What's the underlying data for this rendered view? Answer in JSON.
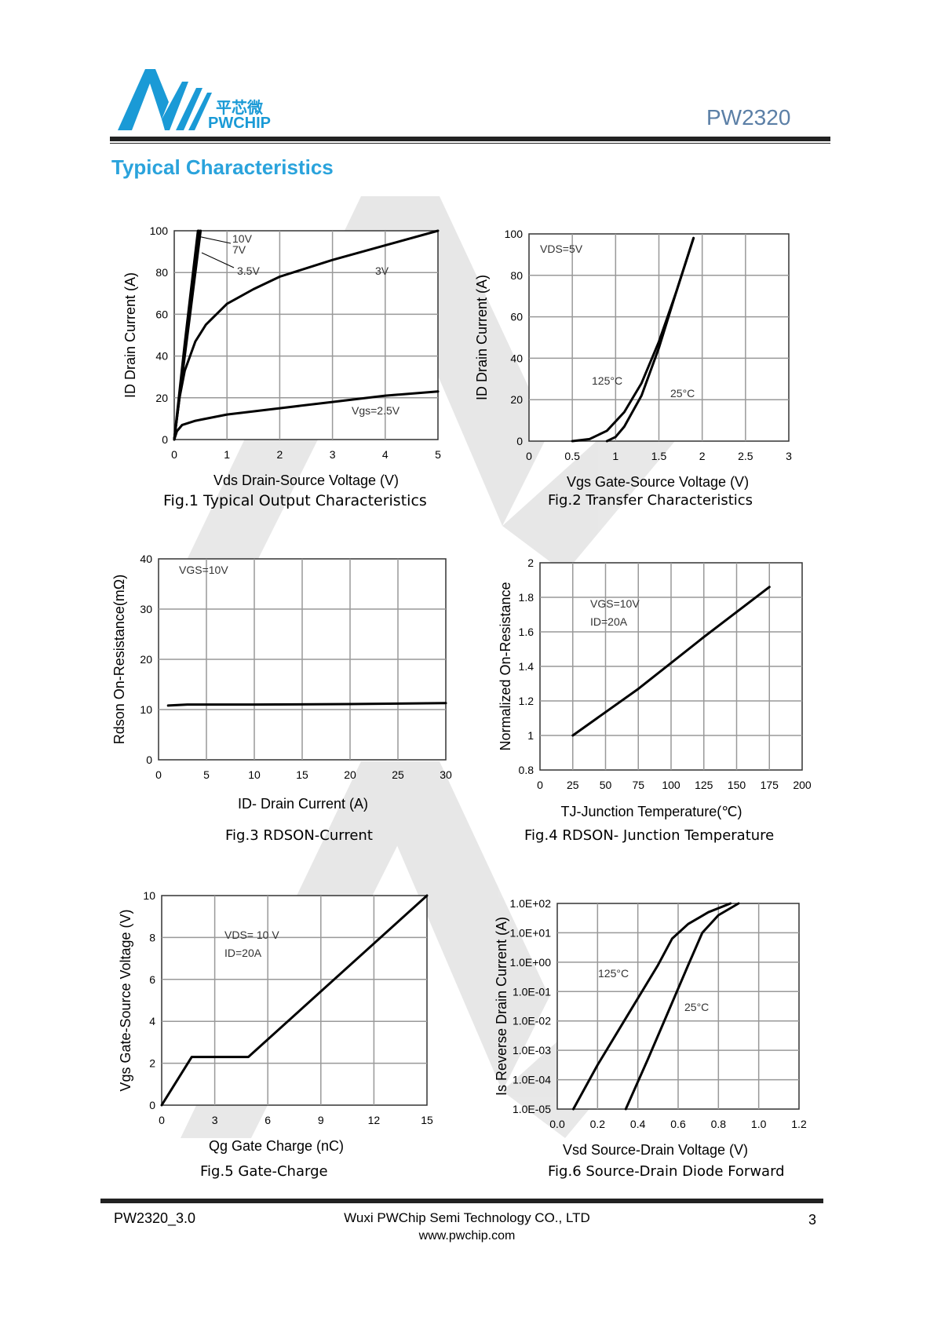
{
  "header": {
    "logo_cn": "平芯微",
    "logo_en": "PWCHIP",
    "part_number": "PW2320",
    "section_title": "Typical Characteristics"
  },
  "colors": {
    "brand_blue": "#1a9ad6",
    "title_blue": "#2aa3dc",
    "part_gray_blue": "#5b7fa6"
  },
  "chart_data": [
    {
      "id": "fig1",
      "type": "line",
      "caption": "Fig.1 Typical Output Characteristics",
      "xlabel": "Vds Drain-Source Voltage (V)",
      "ylabel": "ID Drain Current (A)",
      "xlim": [
        0,
        5
      ],
      "ylim": [
        0,
        100
      ],
      "xticks": [
        "0",
        "1",
        "2",
        "3",
        "4",
        "5"
      ],
      "yticks": [
        "0",
        "20",
        "40",
        "60",
        "80",
        "100"
      ],
      "grid": true,
      "series": [
        {
          "name": "10V",
          "x": [
            0,
            0.1,
            0.2,
            0.3,
            0.4,
            0.5
          ],
          "y": [
            0,
            20,
            40,
            60,
            80,
            100
          ]
        },
        {
          "name": "7V",
          "x": [
            0,
            0.1,
            0.2,
            0.3,
            0.4,
            0.47
          ],
          "y": [
            0,
            21,
            42,
            63,
            85,
            100
          ]
        },
        {
          "name": "3.5V",
          "x": [
            0,
            0.1,
            0.2,
            0.3,
            0.38,
            0.45
          ],
          "y": [
            0,
            23,
            46,
            68,
            85,
            100
          ]
        },
        {
          "name": "3V",
          "x": [
            0,
            0.1,
            0.2,
            0.4,
            0.6,
            1.0,
            1.5,
            2.0,
            3.0,
            4.0,
            5.0
          ],
          "y": [
            0,
            20,
            33,
            47,
            55,
            65,
            72,
            78,
            86,
            93,
            100
          ]
        },
        {
          "name": "Vgs=2.5V",
          "x": [
            0,
            0.05,
            0.15,
            0.4,
            1.0,
            2.0,
            3.0,
            4.0,
            5.0
          ],
          "y": [
            0,
            4,
            7,
            9,
            12,
            15,
            18,
            21,
            23
          ]
        }
      ]
    },
    {
      "id": "fig2",
      "type": "line",
      "caption": "Fig.2 Transfer Characteristics",
      "annotation": "VDS=5V",
      "xlabel": "Vgs Gate-Source Voltage (V)",
      "ylabel": "ID Drain Current (A)",
      "xlim": [
        0,
        3
      ],
      "ylim": [
        0,
        100
      ],
      "xticks": [
        "0",
        "0.5",
        "1",
        "1.5",
        "2",
        "2.5",
        "3"
      ],
      "yticks": [
        "0",
        "20",
        "40",
        "60",
        "80",
        "100"
      ],
      "grid": true,
      "series": [
        {
          "name": "125°C",
          "x": [
            0.5,
            0.7,
            0.9,
            1.1,
            1.3,
            1.5,
            1.7,
            1.9
          ],
          "y": [
            0,
            1,
            5,
            14,
            28,
            48,
            72,
            98
          ]
        },
        {
          "name": "25°C",
          "x": [
            0.9,
            1.0,
            1.1,
            1.3,
            1.5,
            1.7,
            1.9
          ],
          "y": [
            0,
            2,
            7,
            22,
            45,
            72,
            98
          ]
        }
      ]
    },
    {
      "id": "fig3",
      "type": "line",
      "caption": "Fig.3 RDSON-Current",
      "annotation": "VGS=10V",
      "xlabel": "ID- Drain Current (A)",
      "ylabel": "Rdson On-Resistance(mΩ)",
      "xlim": [
        0,
        30
      ],
      "ylim": [
        0,
        40
      ],
      "xticks": [
        "0",
        "5",
        "10",
        "15",
        "20",
        "25",
        "30"
      ],
      "yticks": [
        "0",
        "10",
        "20",
        "30",
        "40"
      ],
      "grid": true,
      "series": [
        {
          "name": "VGS=10V",
          "x": [
            1,
            3,
            10,
            20,
            30
          ],
          "y": [
            10.8,
            11.0,
            11.0,
            11.1,
            11.3
          ]
        }
      ]
    },
    {
      "id": "fig4",
      "type": "line",
      "caption": "Fig.4 RDSON- Junction Temperature",
      "annotation_lines": [
        "VGS=10V",
        "ID=20A"
      ],
      "xlabel": "TJ-Junction Temperature(℃)",
      "ylabel": "Normalized On-Resistance",
      "xlim": [
        0,
        200
      ],
      "ylim": [
        0.8,
        2.0
      ],
      "xticks": [
        "0",
        "25",
        "50",
        "75",
        "100",
        "125",
        "150",
        "175",
        "200"
      ],
      "yticks": [
        "0.8",
        "1",
        "1.2",
        "1.4",
        "1.6",
        "1.8",
        "2"
      ],
      "grid": true,
      "series": [
        {
          "name": "VGS=10V",
          "x": [
            25,
            75,
            125,
            175
          ],
          "y": [
            1.0,
            1.27,
            1.57,
            1.86
          ]
        }
      ]
    },
    {
      "id": "fig5",
      "type": "line",
      "caption": "Fig.5 Gate-Charge",
      "annotation_lines": [
        "VDS= 10 V",
        "ID=20A"
      ],
      "xlabel": "Qg Gate Charge (nC)",
      "ylabel": "Vgs Gate-Source Voltage (V)",
      "xlim": [
        0,
        15
      ],
      "ylim": [
        0,
        10
      ],
      "xticks": [
        "0",
        "3",
        "6",
        "9",
        "12",
        "15"
      ],
      "yticks": [
        "0",
        "2",
        "4",
        "6",
        "8",
        "10"
      ],
      "grid": true,
      "series": [
        {
          "name": "VDS= 10 V",
          "x": [
            0,
            1.7,
            4.9,
            15
          ],
          "y": [
            0,
            2.3,
            2.3,
            10
          ]
        }
      ]
    },
    {
      "id": "fig6",
      "type": "line",
      "caption": "Fig.6 Source-Drain Diode Forward",
      "xlabel": "Vsd Source-Drain Voltage (V)",
      "ylabel": "Is Reverse Drain Current (A)",
      "xlim": [
        0,
        1.2
      ],
      "ylim": [
        -5,
        2
      ],
      "y_scale": "log",
      "xticks": [
        "0.0",
        "0.2",
        "0.4",
        "0.6",
        "0.8",
        "1.0",
        "1.2"
      ],
      "yticks": [
        "1.0E-05",
        "1.0E-04",
        "1.0E-03",
        "1.0E-02",
        "1.0E-01",
        "1.0E+00",
        "1.0E+01",
        "1.0E+02"
      ],
      "grid": true,
      "series": [
        {
          "name": "125°C",
          "x": [
            0.08,
            0.2,
            0.35,
            0.5,
            0.57,
            0.65,
            0.75,
            0.86
          ],
          "y": [
            -5,
            -3.5,
            -1.8,
            -0.1,
            0.8,
            1.3,
            1.7,
            2.0
          ]
        },
        {
          "name": "25°C",
          "x": [
            0.34,
            0.45,
            0.55,
            0.65,
            0.72,
            0.8,
            0.9
          ],
          "y": [
            -5,
            -3.3,
            -1.7,
            -0.1,
            1.0,
            1.6,
            2.0
          ]
        }
      ]
    }
  ],
  "footer": {
    "doc_id": "PW2320_3.0",
    "company": "Wuxi PWChip Semi Technology CO., LTD",
    "url": "www.pwchip.com",
    "page": "3"
  }
}
